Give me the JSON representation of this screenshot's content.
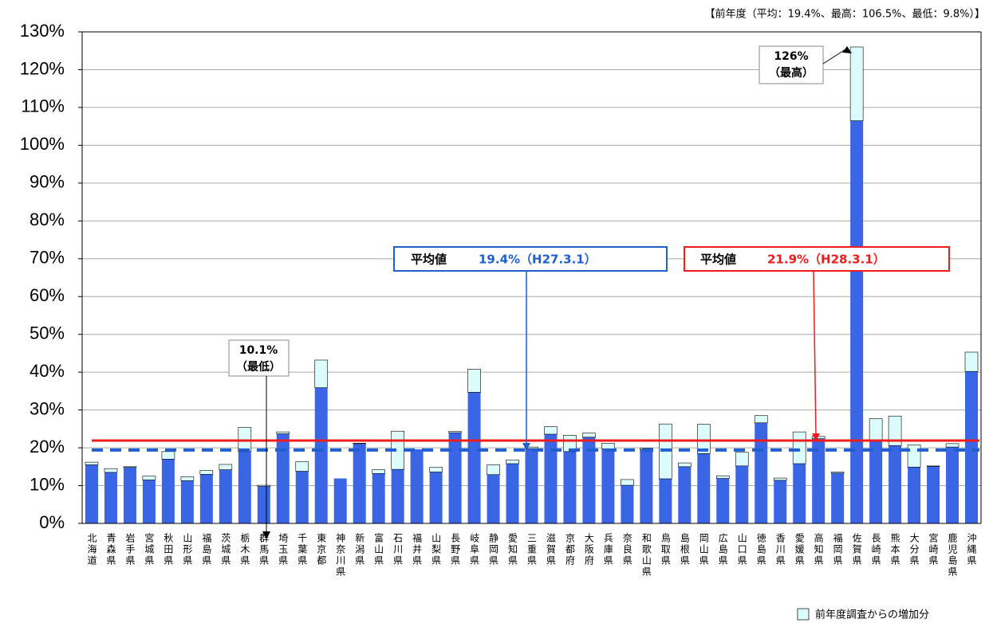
{
  "chart_data": {
    "type": "stacked_bar",
    "note": "【前年度（平均：19.4%、最高：106.5%、最低：9.8%）】",
    "categories": [
      "北海道",
      "青森県",
      "岩手県",
      "宮城県",
      "秋田県",
      "山形県",
      "福島県",
      "茨城県",
      "栃木県",
      "群馬県",
      "埼玉県",
      "千葉県",
      "東京都",
      "神奈川県",
      "新潟県",
      "富山県",
      "石川県",
      "福井県",
      "山梨県",
      "長野県",
      "岐阜県",
      "静岡県",
      "愛知県",
      "三重県",
      "滋賀県",
      "京都府",
      "大阪府",
      "兵庫県",
      "奈良県",
      "和歌山県",
      "鳥取県",
      "島根県",
      "岡山県",
      "広島県",
      "山口県",
      "徳島県",
      "香川県",
      "愛媛県",
      "高知県",
      "福岡県",
      "佐賀県",
      "長崎県",
      "熊本県",
      "大分県",
      "宮崎県",
      "鹿児島県",
      "沖縄県"
    ],
    "series": [
      {
        "color": "#3a66e6",
        "values": [
          15.5,
          13.5,
          14.8,
          11.5,
          17,
          11.3,
          13,
          14.2,
          19,
          9.8,
          23.7,
          13.8,
          35.9,
          11.9,
          21.1,
          13.2,
          14.3,
          19.6,
          13.6,
          24,
          34.7,
          12.9,
          15.8,
          19.8,
          23.6,
          19,
          22.8,
          19.7,
          10.1,
          19.5,
          11.8,
          15,
          18.5,
          11.9,
          15.2,
          26.6,
          11.4,
          15.8,
          22.4,
          13.3,
          106.5,
          22,
          20.6,
          14.9,
          15.1,
          20.2,
          40.2
        ]
      },
      {
        "name": "前年度調査からの増加分",
        "color": "#dcfcfc",
        "values": [
          0.7,
          1.0,
          0.2,
          1.0,
          2.0,
          1.0,
          1.0,
          1.4,
          6.4,
          0.3,
          0.5,
          2.5,
          7.3,
          0,
          0.1,
          1.0,
          10.1,
          0,
          1.2,
          0.3,
          6.1,
          2.6,
          1.0,
          0.4,
          2.0,
          4.3,
          1.1,
          1.5,
          1.5,
          0.4,
          14.5,
          1.0,
          7.7,
          0.7,
          3.6,
          1.9,
          0.6,
          8.4,
          0.6,
          0.3,
          19.5,
          5.7,
          7.8,
          5.9,
          0.1,
          0.9,
          5.1
        ]
      }
    ],
    "ylim": [
      0,
      130
    ],
    "yticks": [
      {
        "value": 0,
        "label": "0%"
      },
      {
        "value": 10,
        "label": "10%"
      },
      {
        "value": 20,
        "label": "20%"
      },
      {
        "value": 30,
        "label": "30%"
      },
      {
        "value": 40,
        "label": "40%"
      },
      {
        "value": 50,
        "label": "50%"
      },
      {
        "value": 60,
        "label": "60%"
      },
      {
        "value": 70,
        "label": "70%"
      },
      {
        "value": 80,
        "label": "80%"
      },
      {
        "value": 90,
        "label": "90%"
      },
      {
        "value": 100,
        "label": "100%"
      },
      {
        "value": 110,
        "label": "110%"
      },
      {
        "value": 120,
        "label": "120%"
      },
      {
        "value": 130,
        "label": "130%"
      }
    ],
    "grid": true,
    "reference_lines": [
      {
        "value": 19.4,
        "color": "#1f5fd0",
        "style": "dashed",
        "label": "平均値",
        "value_label": "19.4%（H27.3.1）"
      },
      {
        "value": 21.9,
        "color": "#ee1c1c",
        "style": "solid",
        "label": "平均値",
        "value_label": "21.9%（H28.3.1）"
      }
    ],
    "annotations": [
      {
        "lines": [
          "10.1%",
          "（最低）"
        ]
      },
      {
        "lines": [
          "126%",
          "（最高）"
        ]
      }
    ]
  }
}
